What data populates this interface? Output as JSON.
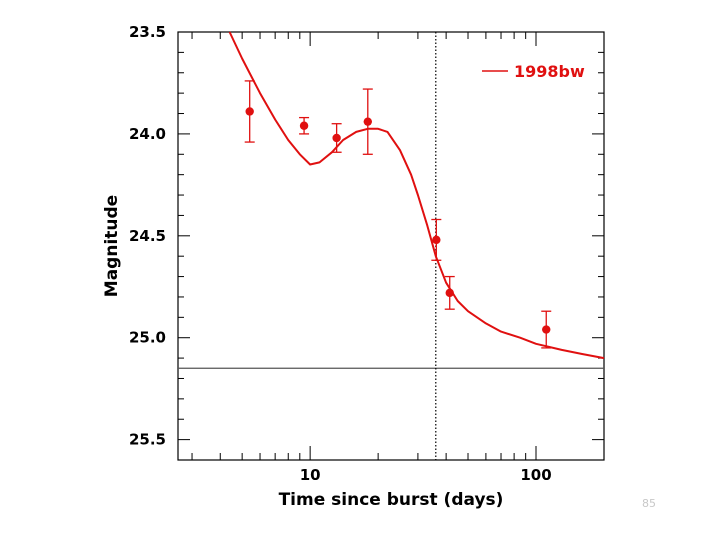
{
  "chart_data": {
    "type": "scatter",
    "title": "",
    "xlabel": "Time since burst (days)",
    "ylabel": "Magnitude",
    "xscale": "log",
    "xlim": [
      2.6,
      200
    ],
    "ylim": [
      23.5,
      25.6
    ],
    "y_inverted": true,
    "x_ticks": [
      10,
      100
    ],
    "y_ticks": [
      23.5,
      24.0,
      24.5,
      25.0,
      25.5
    ],
    "y_tick_labels": [
      "23.5",
      "24.0",
      "24.5",
      "25.0",
      "25.5"
    ],
    "x_tick_labels": [
      "10",
      "100"
    ],
    "series": [
      {
        "name": "data",
        "color": "#e01010",
        "points": [
          {
            "x": 5.4,
            "y": 23.89,
            "ylo": 23.74,
            "yhi": 24.04
          },
          {
            "x": 9.4,
            "y": 23.96,
            "ylo": 23.92,
            "yhi": 24.0
          },
          {
            "x": 13.1,
            "y": 24.02,
            "ylo": 23.95,
            "yhi": 24.09
          },
          {
            "x": 18.0,
            "y": 23.94,
            "ylo": 23.78,
            "yhi": 24.1
          },
          {
            "x": 36.2,
            "y": 24.52,
            "ylo": 24.42,
            "yhi": 24.62
          },
          {
            "x": 41.5,
            "y": 24.78,
            "ylo": 24.7,
            "yhi": 24.86
          },
          {
            "x": 111.0,
            "y": 24.96,
            "ylo": 24.87,
            "yhi": 25.05
          }
        ]
      },
      {
        "name": "1998bw",
        "kind": "line",
        "color": "#e01010",
        "x": [
          4.4,
          5.0,
          6.0,
          7.0,
          8.0,
          9.0,
          10.0,
          11.0,
          12.5,
          14.0,
          16.0,
          18.0,
          20.0,
          22.0,
          25.0,
          28.0,
          30.0,
          33.0,
          36.0,
          40.0,
          45.0,
          50.0,
          60.0,
          70.0,
          85.0,
          100.0,
          130.0,
          160.0,
          200.0
        ],
        "y": [
          23.5,
          23.63,
          23.8,
          23.93,
          24.03,
          24.1,
          24.15,
          24.14,
          24.09,
          24.03,
          23.99,
          23.975,
          23.975,
          23.99,
          24.08,
          24.2,
          24.3,
          24.45,
          24.6,
          24.73,
          24.82,
          24.87,
          24.93,
          24.97,
          25.0,
          25.03,
          25.06,
          25.08,
          25.1
        ]
      }
    ],
    "reference_lines": [
      {
        "orientation": "horizontal",
        "value": 25.15,
        "color": "#555555",
        "style": "solid"
      },
      {
        "orientation": "vertical",
        "value": 36.0,
        "color": "#000000",
        "style": "dotted"
      }
    ],
    "legend": {
      "position": "top-right",
      "entries": [
        {
          "label": "1998bw",
          "color": "#e01010"
        }
      ]
    }
  },
  "page_number": "85"
}
